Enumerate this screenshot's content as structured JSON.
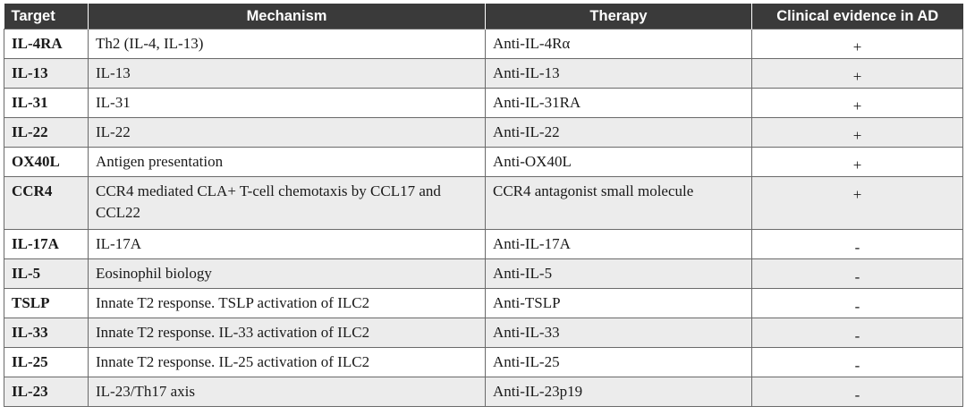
{
  "headers": [
    "Target",
    "Mechanism",
    "Therapy",
    "Clinical evidence in AD"
  ],
  "rows": [
    {
      "target": "IL-4RA",
      "mechanism": "Th2 (IL-4, IL-13)",
      "therapy": "Anti-IL-4Rα",
      "evidence": "+"
    },
    {
      "target": "IL-13",
      "mechanism": "IL-13",
      "therapy": "Anti-IL-13",
      "evidence": "+"
    },
    {
      "target": "IL-31",
      "mechanism": "IL-31",
      "therapy": "Anti-IL-31RA",
      "evidence": "+"
    },
    {
      "target": "IL-22",
      "mechanism": "IL-22",
      "therapy": "Anti-IL-22",
      "evidence": "+"
    },
    {
      "target": "OX40L",
      "mechanism": "Antigen presentation",
      "therapy": "Anti-OX40L",
      "evidence": "+"
    },
    {
      "target": "CCR4",
      "mechanism": "CCR4 mediated CLA+ T-cell chemotaxis by CCL17 and CCL22",
      "therapy": "CCR4 antagonist small molecule",
      "evidence": "+"
    },
    {
      "target": "IL-17A",
      "mechanism": "IL-17A",
      "therapy": "Anti-IL-17A",
      "evidence": "-"
    },
    {
      "target": "IL-5",
      "mechanism": "Eosinophil biology",
      "therapy": "Anti-IL-5",
      "evidence": "-"
    },
    {
      "target": "TSLP",
      "mechanism": "Innate T2 response. TSLP activation of ILC2",
      "therapy": "Anti-TSLP",
      "evidence": "-"
    },
    {
      "target": "IL-33",
      "mechanism": "Innate T2 response. IL-33 activation of ILC2",
      "therapy": "Anti-IL-33",
      "evidence": "-"
    },
    {
      "target": "IL-25",
      "mechanism": "Innate T2 response. IL-25 activation of ILC2",
      "therapy": "Anti-IL-25",
      "evidence": "-"
    },
    {
      "target": "IL-23",
      "mechanism": "IL-23/Th17 axis",
      "therapy": "Anti-IL-23p19",
      "evidence": "-"
    }
  ]
}
